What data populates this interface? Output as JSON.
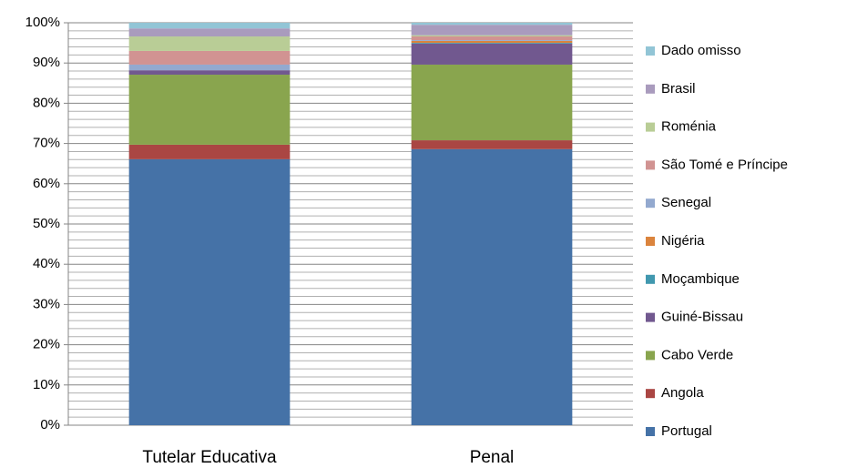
{
  "chart_data": {
    "type": "stacked_bar",
    "categories": [
      "Tutelar Educativa",
      "Penal"
    ],
    "series": [
      {
        "name": "Portugal",
        "color": "#4572a7",
        "values": [
          66.1,
          68.6
        ]
      },
      {
        "name": "Angola",
        "color": "#aa4643",
        "values": [
          3.6,
          2.2
        ]
      },
      {
        "name": "Cabo Verde",
        "color": "#89a54e",
        "values": [
          17.4,
          18.8
        ]
      },
      {
        "name": "Guiné-Bissau",
        "color": "#71588f",
        "values": [
          1.1,
          5.2
        ]
      },
      {
        "name": "Moçambique",
        "color": "#4198af",
        "values": [
          0,
          0.2
        ]
      },
      {
        "name": "Nigéria",
        "color": "#db843d",
        "values": [
          0,
          0.5
        ]
      },
      {
        "name": "Senegal",
        "color": "#93a9cf",
        "values": [
          1.4,
          0.2
        ]
      },
      {
        "name": "São Tomé e Príncipe",
        "color": "#d19392",
        "values": [
          3.4,
          0.9
        ]
      },
      {
        "name": "Roménia",
        "color": "#b9cd96",
        "values": [
          3.6,
          0.3
        ]
      },
      {
        "name": "Brasil",
        "color": "#a99bbd",
        "values": [
          2.0,
          2.6
        ]
      },
      {
        "name": "Dado omisso",
        "color": "#92c5d6",
        "values": [
          1.4,
          0.5
        ]
      }
    ],
    "ylim": [
      0,
      100
    ],
    "yticks": [
      {
        "value": 0,
        "label": "0%"
      },
      {
        "value": 10,
        "label": "10%"
      },
      {
        "value": 20,
        "label": "20%"
      },
      {
        "value": 30,
        "label": "30%"
      },
      {
        "value": 40,
        "label": "40%"
      },
      {
        "value": 50,
        "label": "50%"
      },
      {
        "value": 60,
        "label": "60%"
      },
      {
        "value": 70,
        "label": "70%"
      },
      {
        "value": 80,
        "label": "80%"
      },
      {
        "value": 90,
        "label": "90%"
      },
      {
        "value": 100,
        "label": "100%"
      }
    ],
    "minor_yticks": [
      2,
      4,
      6,
      8,
      12,
      14,
      16,
      18,
      22,
      24,
      26,
      28,
      32,
      34,
      36,
      38,
      42,
      44,
      46,
      48,
      52,
      54,
      56,
      58,
      62,
      64,
      66,
      68,
      72,
      74,
      76,
      78,
      82,
      84,
      86,
      88,
      92,
      94,
      96,
      98
    ],
    "grid": true,
    "legend": "right"
  }
}
